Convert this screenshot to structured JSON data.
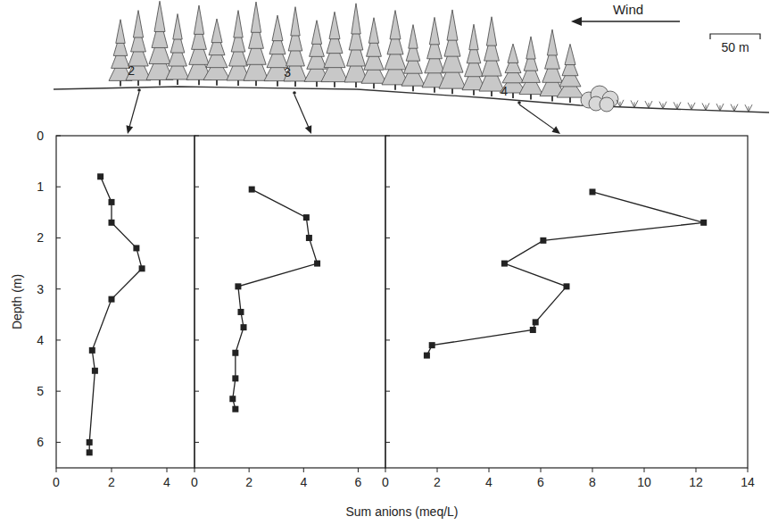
{
  "chart_data": [
    {
      "type": "line",
      "title": "2",
      "marker": "square",
      "color": "#222222",
      "ylabel": "Depth (m)",
      "x": [
        1.6,
        2.0,
        2.0,
        2.9,
        3.1,
        2.0,
        1.3,
        1.4,
        1.2,
        1.2
      ],
      "values": [
        0.8,
        1.3,
        1.7,
        2.2,
        2.6,
        3.2,
        4.2,
        4.6,
        6.0,
        6.2
      ],
      "xlim": [
        0,
        5
      ],
      "xticks": [
        0,
        2,
        4
      ],
      "ylim": [
        6.5,
        0
      ],
      "yticks": [
        0,
        1,
        2,
        3,
        4,
        5,
        6
      ]
    },
    {
      "type": "line",
      "title": "3",
      "marker": "square",
      "color": "#222222",
      "xlabel": "Sum anions (meq/L)",
      "x": [
        2.1,
        4.1,
        4.2,
        4.5,
        1.6,
        1.7,
        1.8,
        1.5,
        1.5,
        1.4,
        1.5
      ],
      "values": [
        1.05,
        1.6,
        2.0,
        2.5,
        2.95,
        3.45,
        3.75,
        4.25,
        4.75,
        5.15,
        5.35
      ],
      "xlim": [
        0,
        7
      ],
      "xticks": [
        0,
        2,
        4,
        6
      ],
      "ylim": [
        6.5,
        0
      ],
      "yticks": [
        0,
        1,
        2,
        3,
        4,
        5,
        6
      ],
      "tick_labels": "x"
    },
    {
      "type": "line",
      "title": "4",
      "marker": "square",
      "color": "#222222",
      "x": [
        8.0,
        12.3,
        6.1,
        4.6,
        7.0,
        5.8,
        5.7,
        1.8,
        1.6
      ],
      "values": [
        1.1,
        1.7,
        2.05,
        2.5,
        2.95,
        3.65,
        3.8,
        4.1,
        4.3
      ],
      "xlim": [
        0,
        14
      ],
      "xticks": [
        0,
        2,
        4,
        6,
        8,
        10,
        12,
        14
      ],
      "ylim": [
        6.5,
        0
      ],
      "yticks": [
        0,
        1,
        2,
        3,
        4,
        5,
        6
      ],
      "tick_labels": "x"
    }
  ],
  "illustration": {
    "wind": "Wind",
    "scale_bar": "50 m"
  }
}
